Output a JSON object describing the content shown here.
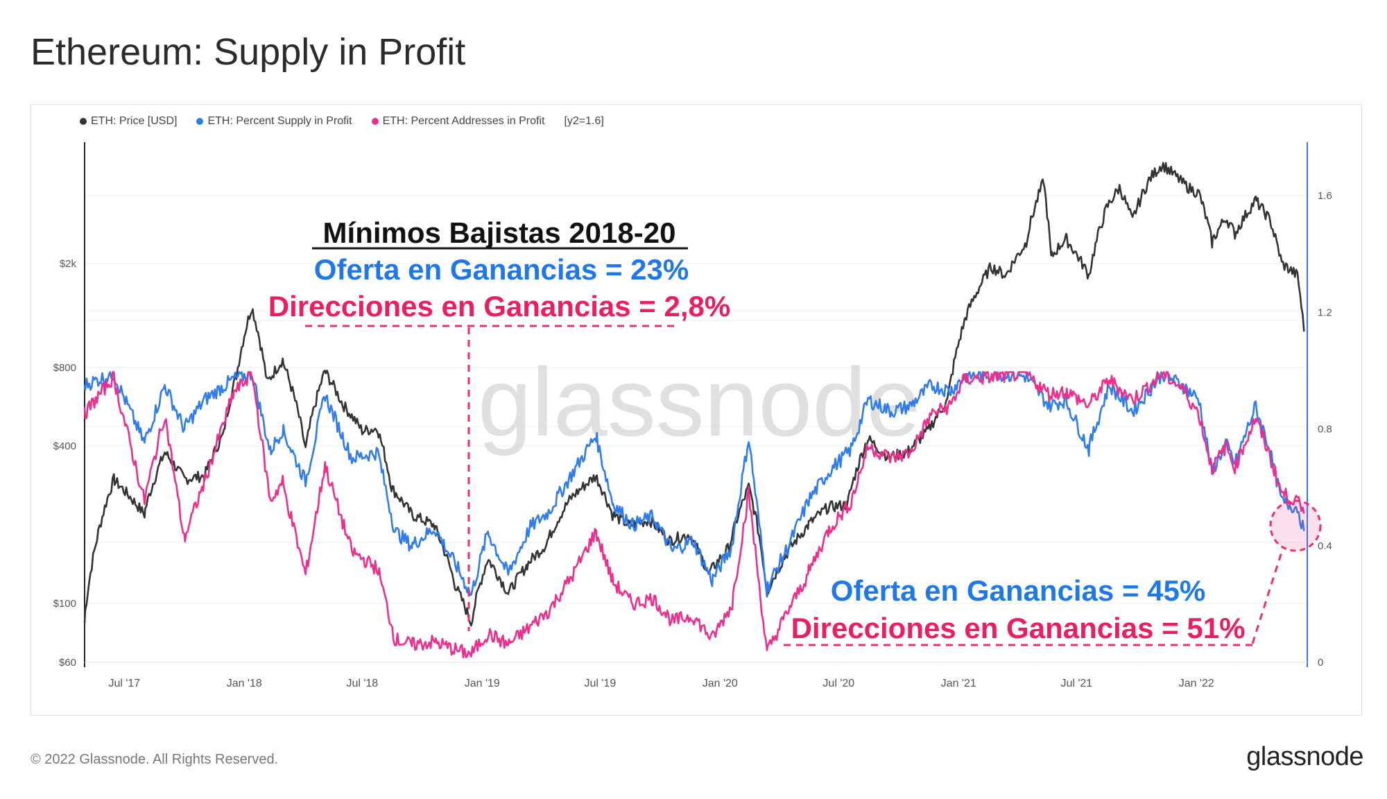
{
  "page": {
    "title": "Ethereum: Supply in Profit"
  },
  "legend": {
    "items": [
      {
        "label": "ETH: Price [USD]",
        "color": "#333333"
      },
      {
        "label": "ETH: Percent Supply in Profit",
        "color": "#2f7bf0"
      },
      {
        "label": "ETH: Percent Addresses in Profit",
        "color": "#ee2d8c"
      }
    ],
    "note": "[y2=1.6]"
  },
  "watermark": "glassnode",
  "annotations": {
    "top": {
      "heading": "Mínimos Bajistas 2018-20",
      "supply": "Oferta en Ganancias = 23%",
      "addresses": "Direcciones en Ganancias = 2,8%"
    },
    "bottom": {
      "supply": "Oferta en Ganancias = 45%",
      "addresses": "Direcciones en Ganancias = 51%"
    }
  },
  "footer": {
    "copyright": "© 2022 Glassnode. All Rights Reserved.",
    "logo": "glassnode"
  },
  "chart_data": {
    "type": "line",
    "x_ticks": [
      "Jul '17",
      "Jan '18",
      "Jul '18",
      "Jan '19",
      "Jul '19",
      "Jan '20",
      "Jul '20",
      "Jan '21",
      "Jul '21",
      "Jan '22"
    ],
    "y_left": {
      "scale": "log",
      "ticks": [
        "$60",
        "$100",
        "$400",
        "$800",
        "$2k"
      ]
    },
    "y_right": {
      "ticks": [
        "0",
        "0.4",
        "0.8",
        "1.2",
        "1.6"
      ],
      "range": [
        0,
        1.8
      ]
    },
    "series": [
      {
        "name": "ETH: Price [USD]",
        "axis": "left",
        "color": "#333333",
        "points": [
          [
            "2017-05-01",
            85
          ],
          [
            "2017-06-15",
            300
          ],
          [
            "2017-08-01",
            220
          ],
          [
            "2017-09-01",
            380
          ],
          [
            "2017-10-01",
            300
          ],
          [
            "2017-11-01",
            310
          ],
          [
            "2017-12-01",
            450
          ],
          [
            "2017-12-20",
            750
          ],
          [
            "2018-01-13",
            1380
          ],
          [
            "2018-02-05",
            700
          ],
          [
            "2018-03-01",
            860
          ],
          [
            "2018-04-05",
            390
          ],
          [
            "2018-05-05",
            780
          ],
          [
            "2018-06-01",
            580
          ],
          [
            "2018-07-01",
            460
          ],
          [
            "2018-07-25",
            470
          ],
          [
            "2018-08-15",
            280
          ],
          [
            "2018-09-15",
            220
          ],
          [
            "2018-10-20",
            200
          ],
          [
            "2018-11-20",
            120
          ],
          [
            "2018-12-15",
            85
          ],
          [
            "2019-01-10",
            150
          ],
          [
            "2019-02-10",
            110
          ],
          [
            "2019-03-10",
            140
          ],
          [
            "2019-04-10",
            170
          ],
          [
            "2019-05-15",
            250
          ],
          [
            "2019-06-25",
            310
          ],
          [
            "2019-07-20",
            220
          ],
          [
            "2019-08-15",
            200
          ],
          [
            "2019-09-15",
            210
          ],
          [
            "2019-10-15",
            175
          ],
          [
            "2019-11-15",
            185
          ],
          [
            "2019-12-15",
            130
          ],
          [
            "2020-01-15",
            165
          ],
          [
            "2020-02-14",
            280
          ],
          [
            "2020-03-13",
            110
          ],
          [
            "2020-04-15",
            160
          ],
          [
            "2020-05-15",
            200
          ],
          [
            "2020-06-15",
            235
          ],
          [
            "2020-07-15",
            240
          ],
          [
            "2020-08-15",
            430
          ],
          [
            "2020-09-15",
            365
          ],
          [
            "2020-10-15",
            380
          ],
          [
            "2020-11-15",
            460
          ],
          [
            "2020-12-15",
            600
          ],
          [
            "2021-01-10",
            1200
          ],
          [
            "2021-02-20",
            1950
          ],
          [
            "2021-03-15",
            1800
          ],
          [
            "2021-04-15",
            2400
          ],
          [
            "2021-05-12",
            4150
          ],
          [
            "2021-05-23",
            2100
          ],
          [
            "2021-06-15",
            2500
          ],
          [
            "2021-07-20",
            1800
          ],
          [
            "2021-08-15",
            3200
          ],
          [
            "2021-09-05",
            3900
          ],
          [
            "2021-09-25",
            2900
          ],
          [
            "2021-10-20",
            4150
          ],
          [
            "2021-11-10",
            4800
          ],
          [
            "2021-12-05",
            4200
          ],
          [
            "2021-12-20",
            3900
          ],
          [
            "2022-01-05",
            3700
          ],
          [
            "2022-01-25",
            2400
          ],
          [
            "2022-02-15",
            3000
          ],
          [
            "2022-03-01",
            2600
          ],
          [
            "2022-04-02",
            3500
          ],
          [
            "2022-04-25",
            2900
          ],
          [
            "2022-05-12",
            2000
          ],
          [
            "2022-06-05",
            1800
          ],
          [
            "2022-06-15",
            1100
          ]
        ]
      },
      {
        "name": "ETH: Percent Supply in Profit",
        "axis": "right",
        "color": "#2f7bf0",
        "points": [
          [
            "2017-05-01",
            0.95
          ],
          [
            "2017-06-15",
            0.99
          ],
          [
            "2017-08-01",
            0.75
          ],
          [
            "2017-09-01",
            0.95
          ],
          [
            "2017-10-01",
            0.8
          ],
          [
            "2017-11-01",
            0.9
          ],
          [
            "2017-12-15",
            0.97
          ],
          [
            "2018-01-13",
            0.99
          ],
          [
            "2018-02-10",
            0.72
          ],
          [
            "2018-03-01",
            0.8
          ],
          [
            "2018-04-05",
            0.62
          ],
          [
            "2018-05-05",
            0.92
          ],
          [
            "2018-06-15",
            0.7
          ],
          [
            "2018-07-25",
            0.72
          ],
          [
            "2018-08-20",
            0.45
          ],
          [
            "2018-09-15",
            0.4
          ],
          [
            "2018-10-20",
            0.46
          ],
          [
            "2018-11-25",
            0.32
          ],
          [
            "2018-12-15",
            0.23
          ],
          [
            "2019-01-10",
            0.45
          ],
          [
            "2019-02-10",
            0.3
          ],
          [
            "2019-03-15",
            0.46
          ],
          [
            "2019-04-15",
            0.52
          ],
          [
            "2019-05-20",
            0.65
          ],
          [
            "2019-06-25",
            0.78
          ],
          [
            "2019-07-20",
            0.55
          ],
          [
            "2019-08-20",
            0.47
          ],
          [
            "2019-09-20",
            0.5
          ],
          [
            "2019-10-20",
            0.38
          ],
          [
            "2019-11-20",
            0.42
          ],
          [
            "2019-12-20",
            0.28
          ],
          [
            "2020-01-20",
            0.4
          ],
          [
            "2020-02-14",
            0.77
          ],
          [
            "2020-03-13",
            0.25
          ],
          [
            "2020-04-15",
            0.4
          ],
          [
            "2020-05-15",
            0.55
          ],
          [
            "2020-06-15",
            0.65
          ],
          [
            "2020-07-20",
            0.73
          ],
          [
            "2020-08-15",
            0.9
          ],
          [
            "2020-09-20",
            0.86
          ],
          [
            "2020-10-20",
            0.88
          ],
          [
            "2020-11-20",
            0.95
          ],
          [
            "2020-12-20",
            0.93
          ],
          [
            "2021-01-10",
            0.98
          ],
          [
            "2021-03-01",
            0.99
          ],
          [
            "2021-04-15",
            0.98
          ],
          [
            "2021-05-20",
            0.88
          ],
          [
            "2021-06-15",
            0.9
          ],
          [
            "2021-07-20",
            0.73
          ],
          [
            "2021-08-20",
            0.95
          ],
          [
            "2021-09-25",
            0.86
          ],
          [
            "2021-11-10",
            0.99
          ],
          [
            "2021-12-10",
            0.95
          ],
          [
            "2022-01-05",
            0.9
          ],
          [
            "2022-01-25",
            0.65
          ],
          [
            "2022-02-15",
            0.75
          ],
          [
            "2022-03-01",
            0.68
          ],
          [
            "2022-04-02",
            0.88
          ],
          [
            "2022-04-25",
            0.72
          ],
          [
            "2022-05-12",
            0.55
          ],
          [
            "2022-06-05",
            0.53
          ],
          [
            "2022-06-15",
            0.45
          ]
        ]
      },
      {
        "name": "ETH: Percent Addresses in Profit",
        "axis": "right",
        "color": "#ee2d8c",
        "points": [
          [
            "2017-05-01",
            0.85
          ],
          [
            "2017-06-15",
            0.98
          ],
          [
            "2017-08-01",
            0.55
          ],
          [
            "2017-09-01",
            0.85
          ],
          [
            "2017-10-01",
            0.42
          ],
          [
            "2017-11-01",
            0.62
          ],
          [
            "2017-12-15",
            0.92
          ],
          [
            "2018-01-13",
            0.99
          ],
          [
            "2018-02-10",
            0.55
          ],
          [
            "2018-03-01",
            0.62
          ],
          [
            "2018-04-05",
            0.3
          ],
          [
            "2018-05-05",
            0.68
          ],
          [
            "2018-06-15",
            0.38
          ],
          [
            "2018-07-25",
            0.32
          ],
          [
            "2018-08-20",
            0.08
          ],
          [
            "2018-09-15",
            0.06
          ],
          [
            "2018-10-20",
            0.07
          ],
          [
            "2018-11-25",
            0.04
          ],
          [
            "2018-12-15",
            0.028
          ],
          [
            "2019-01-10",
            0.1
          ],
          [
            "2019-02-10",
            0.06
          ],
          [
            "2019-03-15",
            0.12
          ],
          [
            "2019-04-15",
            0.18
          ],
          [
            "2019-05-20",
            0.3
          ],
          [
            "2019-06-25",
            0.45
          ],
          [
            "2019-07-20",
            0.28
          ],
          [
            "2019-08-20",
            0.2
          ],
          [
            "2019-09-20",
            0.22
          ],
          [
            "2019-10-20",
            0.14
          ],
          [
            "2019-11-20",
            0.16
          ],
          [
            "2019-12-20",
            0.08
          ],
          [
            "2020-01-20",
            0.2
          ],
          [
            "2020-02-14",
            0.58
          ],
          [
            "2020-03-13",
            0.03
          ],
          [
            "2020-04-15",
            0.18
          ],
          [
            "2020-05-15",
            0.3
          ],
          [
            "2020-06-15",
            0.45
          ],
          [
            "2020-07-20",
            0.55
          ],
          [
            "2020-08-15",
            0.74
          ],
          [
            "2020-09-20",
            0.7
          ],
          [
            "2020-10-20",
            0.72
          ],
          [
            "2020-11-20",
            0.85
          ],
          [
            "2020-12-20",
            0.88
          ],
          [
            "2021-01-10",
            0.97
          ],
          [
            "2021-03-01",
            0.98
          ],
          [
            "2021-04-15",
            0.99
          ],
          [
            "2021-05-20",
            0.92
          ],
          [
            "2021-06-15",
            0.93
          ],
          [
            "2021-07-20",
            0.88
          ],
          [
            "2021-08-20",
            0.97
          ],
          [
            "2021-09-25",
            0.9
          ],
          [
            "2021-11-10",
            0.99
          ],
          [
            "2021-12-10",
            0.94
          ],
          [
            "2022-01-05",
            0.85
          ],
          [
            "2022-01-25",
            0.66
          ],
          [
            "2022-02-15",
            0.74
          ],
          [
            "2022-03-01",
            0.67
          ],
          [
            "2022-04-02",
            0.84
          ],
          [
            "2022-04-25",
            0.7
          ],
          [
            "2022-05-12",
            0.58
          ],
          [
            "2022-06-05",
            0.55
          ],
          [
            "2022-06-15",
            0.51
          ]
        ]
      }
    ]
  }
}
